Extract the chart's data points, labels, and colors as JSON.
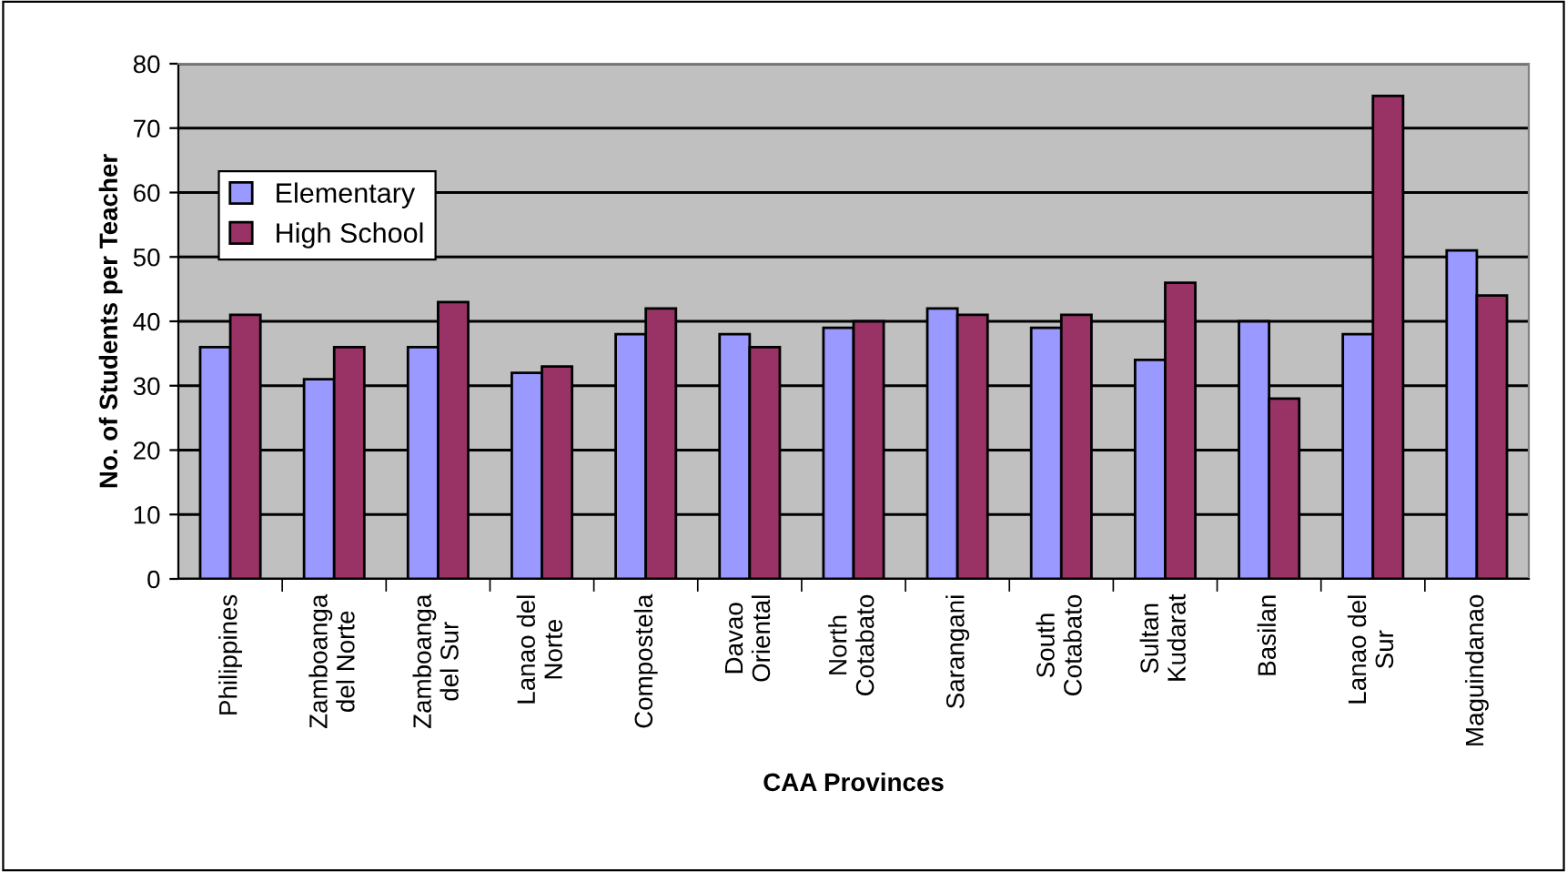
{
  "chart_data": {
    "type": "bar",
    "xlabel": "CAA Provinces",
    "ylabel": "No. of Students per Teacher",
    "categories": [
      "Philippines",
      "Zamboanga\ndel Norte",
      "Zamboanga\ndel Sur",
      "Lanao del\nNorte",
      "Compostela",
      "Davao\nOriental",
      "North\nCotabato",
      "Sarangani",
      "South\nCotabato",
      "Sultan\nKudarat",
      "Basilan",
      "Lanao del\nSur",
      "Maguindanao"
    ],
    "series": [
      {
        "name": "Elementary",
        "color": "#9999ff",
        "values": [
          36,
          31,
          36,
          32,
          38,
          38,
          39,
          42,
          39,
          34,
          40,
          38,
          51
        ]
      },
      {
        "name": "High School",
        "color": "#993366",
        "values": [
          41,
          36,
          43,
          33,
          42,
          36,
          40,
          41,
          41,
          46,
          28,
          75,
          44
        ]
      }
    ],
    "ylim": [
      0,
      80
    ],
    "yticks": [
      0,
      10,
      20,
      30,
      40,
      50,
      60,
      70,
      80
    ],
    "grid": "y",
    "legend": "top left"
  }
}
